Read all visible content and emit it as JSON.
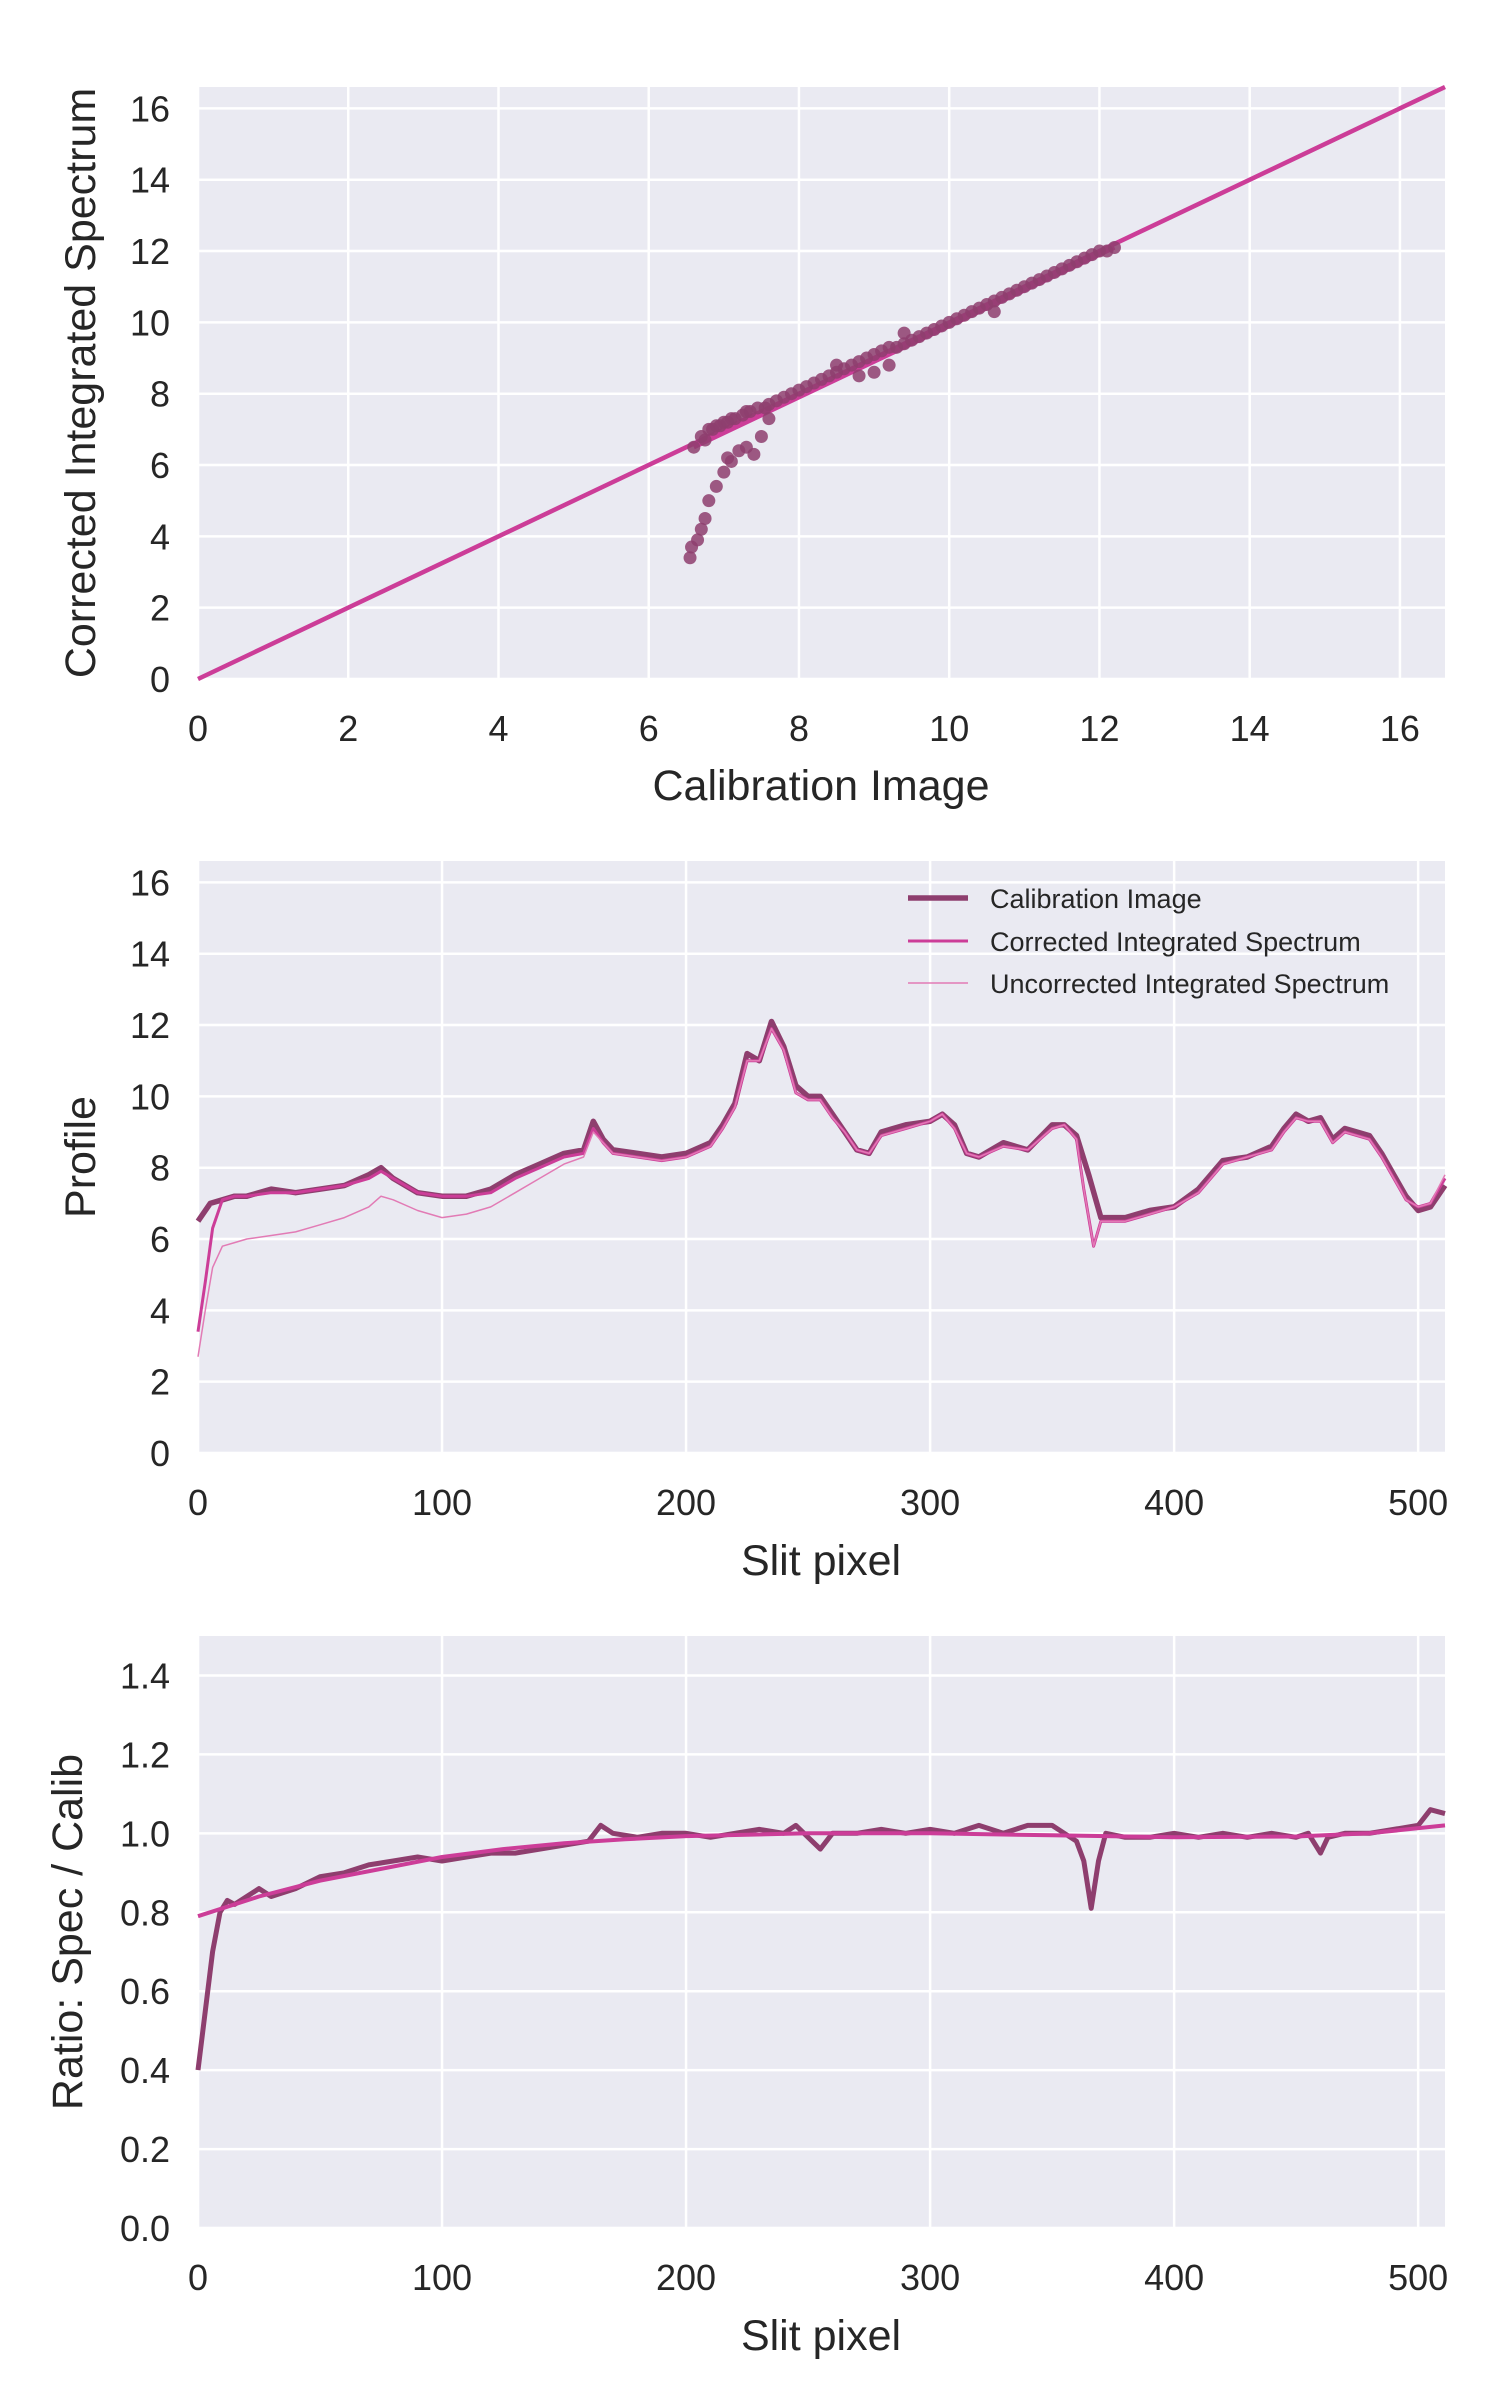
{
  "colors": {
    "background": "#eaeaf2",
    "grid": "#ffffff",
    "dark": "#8e3e6e",
    "pink": "#cc3d98",
    "light": "#e27bb5",
    "text": "#262626"
  },
  "chart_data": [
    {
      "type": "scatter",
      "xlabel": "Calibration Image",
      "ylabel": "Corrected Integrated Spectrum",
      "xlim": [
        0,
        16.6
      ],
      "ylim": [
        0,
        16.6
      ],
      "xticks": [
        0,
        2,
        4,
        6,
        8,
        10,
        12,
        14,
        16
      ],
      "yticks": [
        0,
        2,
        4,
        6,
        8,
        10,
        12,
        14,
        16
      ],
      "grid": true,
      "line": {
        "x": [
          0,
          16.6
        ],
        "y": [
          0,
          16.6
        ]
      },
      "series": [
        {
          "x": [
            6.55,
            6.57,
            6.65,
            6.7,
            6.75,
            6.8,
            6.9,
            7.0,
            7.05,
            7.1,
            7.2,
            7.3,
            7.4,
            7.5,
            6.6,
            6.7,
            6.8,
            6.9,
            7.0,
            7.1,
            6.75,
            6.85,
            6.95,
            7.05,
            7.15,
            7.25,
            7.35,
            7.45,
            7.55,
            7.6,
            7.7,
            7.8,
            7.9,
            8.0,
            8.1,
            8.2,
            8.3,
            8.4,
            8.5,
            8.6,
            8.7,
            8.8,
            8.9,
            9.0,
            9.1,
            9.2,
            9.3,
            9.4,
            9.5,
            9.6,
            9.7,
            9.8,
            9.9,
            10.0,
            10.1,
            10.2,
            10.3,
            10.4,
            10.5,
            10.6,
            10.7,
            10.8,
            10.9,
            11.0,
            11.1,
            11.2,
            11.3,
            11.4,
            11.5,
            11.6,
            11.7,
            11.8,
            11.9,
            12.0,
            12.1,
            12.2,
            9.2,
            9.0,
            8.8,
            7.6,
            7.3,
            8.5,
            9.4,
            10.6
          ],
          "y": [
            3.4,
            3.7,
            3.9,
            4.2,
            4.5,
            5.0,
            5.4,
            5.8,
            6.2,
            6.1,
            6.4,
            6.5,
            6.3,
            6.8,
            6.5,
            6.8,
            7.0,
            7.1,
            7.2,
            7.3,
            6.7,
            7.0,
            7.1,
            7.2,
            7.3,
            7.4,
            7.5,
            7.6,
            7.6,
            7.7,
            7.8,
            7.9,
            8.0,
            8.1,
            8.2,
            8.3,
            8.4,
            8.5,
            8.6,
            8.7,
            8.8,
            8.9,
            9.0,
            9.1,
            9.2,
            9.3,
            9.3,
            9.4,
            9.5,
            9.6,
            9.7,
            9.8,
            9.9,
            10.0,
            10.1,
            10.2,
            10.3,
            10.4,
            10.5,
            10.6,
            10.7,
            10.8,
            10.9,
            11.0,
            11.1,
            11.2,
            11.3,
            11.4,
            11.5,
            11.6,
            11.7,
            11.8,
            11.9,
            12.0,
            12.0,
            12.1,
            8.8,
            8.6,
            8.5,
            7.3,
            7.5,
            8.8,
            9.7,
            10.3
          ]
        }
      ]
    },
    {
      "type": "line",
      "xlabel": "Slit pixel",
      "ylabel": "Profile",
      "xlim": [
        0,
        511
      ],
      "ylim": [
        0,
        16.6
      ],
      "xticks": [
        0,
        100,
        200,
        300,
        400,
        500
      ],
      "yticks": [
        0,
        2,
        4,
        6,
        8,
        10,
        12,
        14,
        16
      ],
      "grid": true,
      "legend_position": "top-right",
      "series": [
        {
          "name": "Calibration Image",
          "x": [
            0,
            5,
            10,
            15,
            20,
            30,
            40,
            50,
            60,
            70,
            75,
            80,
            90,
            100,
            110,
            120,
            130,
            140,
            150,
            158,
            162,
            166,
            170,
            180,
            190,
            200,
            210,
            215,
            220,
            225,
            230,
            235,
            240,
            245,
            250,
            255,
            260,
            265,
            270,
            275,
            280,
            290,
            300,
            305,
            310,
            315,
            320,
            330,
            340,
            350,
            355,
            360,
            365,
            370,
            380,
            390,
            400,
            410,
            420,
            430,
            440,
            445,
            450,
            455,
            460,
            465,
            470,
            480,
            485,
            490,
            495,
            500,
            505,
            511
          ],
          "y": [
            6.5,
            7.0,
            7.1,
            7.2,
            7.2,
            7.4,
            7.3,
            7.4,
            7.5,
            7.8,
            8.0,
            7.7,
            7.3,
            7.2,
            7.2,
            7.4,
            7.8,
            8.1,
            8.4,
            8.5,
            9.3,
            8.8,
            8.5,
            8.4,
            8.3,
            8.4,
            8.7,
            9.2,
            9.8,
            11.2,
            11.0,
            12.1,
            11.4,
            10.3,
            10.0,
            10.0,
            9.5,
            9.0,
            8.5,
            8.4,
            9.0,
            9.2,
            9.3,
            9.5,
            9.2,
            8.4,
            8.3,
            8.7,
            8.5,
            9.2,
            9.2,
            8.9,
            7.8,
            6.6,
            6.6,
            6.8,
            6.9,
            7.4,
            8.2,
            8.3,
            8.6,
            9.1,
            9.5,
            9.3,
            9.4,
            8.8,
            9.1,
            8.9,
            8.4,
            7.8,
            7.2,
            6.8,
            6.9,
            7.5
          ]
        },
        {
          "name": "Corrected Integrated Spectrum",
          "x": [
            0,
            3,
            6,
            10,
            15,
            20,
            30,
            40,
            50,
            60,
            70,
            75,
            80,
            90,
            100,
            110,
            120,
            130,
            140,
            150,
            158,
            162,
            166,
            170,
            180,
            190,
            200,
            210,
            215,
            220,
            225,
            230,
            235,
            240,
            245,
            250,
            255,
            260,
            265,
            270,
            275,
            280,
            290,
            300,
            305,
            310,
            315,
            320,
            330,
            340,
            350,
            355,
            360,
            363,
            367,
            370,
            380,
            390,
            400,
            410,
            420,
            430,
            440,
            445,
            450,
            455,
            460,
            465,
            470,
            480,
            485,
            490,
            495,
            500,
            505,
            511
          ],
          "y": [
            3.4,
            4.8,
            6.3,
            7.1,
            7.2,
            7.2,
            7.3,
            7.3,
            7.4,
            7.5,
            7.7,
            7.9,
            7.7,
            7.3,
            7.2,
            7.2,
            7.3,
            7.7,
            8.0,
            8.3,
            8.4,
            9.1,
            8.7,
            8.4,
            8.3,
            8.2,
            8.3,
            8.6,
            9.1,
            9.7,
            11.0,
            11.0,
            11.9,
            11.3,
            10.1,
            9.9,
            9.9,
            9.4,
            9.0,
            8.5,
            8.4,
            8.9,
            9.1,
            9.3,
            9.5,
            9.1,
            8.4,
            8.3,
            8.6,
            8.5,
            9.1,
            9.2,
            8.8,
            7.4,
            5.8,
            6.5,
            6.5,
            6.7,
            6.9,
            7.3,
            8.1,
            8.3,
            8.5,
            9.0,
            9.4,
            9.3,
            9.3,
            8.7,
            9.0,
            8.8,
            8.3,
            7.7,
            7.1,
            6.9,
            7.0,
            7.7
          ]
        },
        {
          "name": "Uncorrected Integrated Spectrum",
          "x": [
            0,
            3,
            6,
            10,
            15,
            20,
            30,
            40,
            50,
            60,
            70,
            75,
            80,
            90,
            100,
            110,
            120,
            130,
            140,
            150,
            158,
            162,
            166,
            170,
            180,
            190,
            200,
            210,
            215,
            220,
            225,
            230,
            235,
            240,
            245,
            250,
            255,
            260,
            265,
            270,
            275,
            280,
            290,
            300,
            305,
            310,
            315,
            320,
            330,
            340,
            350,
            355,
            360,
            363,
            367,
            370,
            380,
            390,
            400,
            410,
            420,
            430,
            440,
            445,
            450,
            455,
            460,
            465,
            470,
            480,
            485,
            490,
            495,
            500,
            505,
            511
          ],
          "y": [
            2.7,
            4.0,
            5.2,
            5.8,
            5.9,
            6.0,
            6.1,
            6.2,
            6.4,
            6.6,
            6.9,
            7.2,
            7.1,
            6.8,
            6.6,
            6.7,
            6.9,
            7.3,
            7.7,
            8.1,
            8.3,
            9.0,
            8.7,
            8.4,
            8.3,
            8.2,
            8.3,
            8.6,
            9.1,
            9.7,
            11.0,
            11.0,
            11.9,
            11.3,
            10.1,
            9.9,
            9.9,
            9.4,
            9.0,
            8.5,
            8.4,
            8.9,
            9.1,
            9.3,
            9.5,
            9.1,
            8.4,
            8.3,
            8.6,
            8.5,
            9.1,
            9.2,
            8.8,
            7.4,
            5.8,
            6.5,
            6.5,
            6.7,
            6.9,
            7.3,
            8.1,
            8.3,
            8.5,
            9.0,
            9.4,
            9.3,
            9.3,
            8.7,
            9.0,
            8.8,
            8.3,
            7.7,
            7.1,
            6.9,
            7.0,
            7.8
          ]
        }
      ]
    },
    {
      "type": "line",
      "xlabel": "Slit pixel",
      "ylabel": "Ratio: Spec / Calib",
      "xlim": [
        0,
        511
      ],
      "ylim": [
        0,
        1.5
      ],
      "xticks": [
        0,
        100,
        200,
        300,
        400,
        500
      ],
      "yticks": [
        0.0,
        0.2,
        0.4,
        0.6,
        0.8,
        1.0,
        1.2,
        1.4
      ],
      "grid": true,
      "series": [
        {
          "x": [
            0,
            3,
            6,
            9,
            12,
            15,
            20,
            25,
            30,
            40,
            50,
            60,
            70,
            80,
            90,
            100,
            110,
            120,
            130,
            140,
            150,
            160,
            165,
            170,
            180,
            190,
            200,
            210,
            220,
            230,
            240,
            245,
            250,
            255,
            260,
            270,
            280,
            290,
            300,
            310,
            320,
            330,
            340,
            350,
            355,
            360,
            363,
            366,
            369,
            372,
            380,
            390,
            400,
            410,
            420,
            430,
            440,
            450,
            455,
            460,
            463,
            470,
            480,
            490,
            500,
            505,
            511
          ],
          "y": [
            0.4,
            0.55,
            0.7,
            0.8,
            0.83,
            0.82,
            0.84,
            0.86,
            0.84,
            0.86,
            0.89,
            0.9,
            0.92,
            0.93,
            0.94,
            0.93,
            0.94,
            0.95,
            0.95,
            0.96,
            0.97,
            0.98,
            1.02,
            1.0,
            0.99,
            1.0,
            1.0,
            0.99,
            1.0,
            1.01,
            1.0,
            1.02,
            0.99,
            0.96,
            1.0,
            1.0,
            1.01,
            1.0,
            1.01,
            1.0,
            1.02,
            1.0,
            1.02,
            1.02,
            1.0,
            0.98,
            0.93,
            0.81,
            0.93,
            1.0,
            0.99,
            0.99,
            1.0,
            0.99,
            1.0,
            0.99,
            1.0,
            0.99,
            1.0,
            0.95,
            0.99,
            1.0,
            1.0,
            1.01,
            1.02,
            1.06,
            1.05
          ]
        },
        {
          "x": [
            0,
            25,
            50,
            75,
            100,
            125,
            150,
            175,
            200,
            250,
            300,
            350,
            400,
            450,
            480,
            511
          ],
          "y": [
            0.79,
            0.84,
            0.88,
            0.91,
            0.94,
            0.96,
            0.975,
            0.985,
            0.993,
            1.0,
            1.0,
            0.995,
            0.99,
            0.992,
            1.0,
            1.02
          ]
        }
      ]
    }
  ]
}
